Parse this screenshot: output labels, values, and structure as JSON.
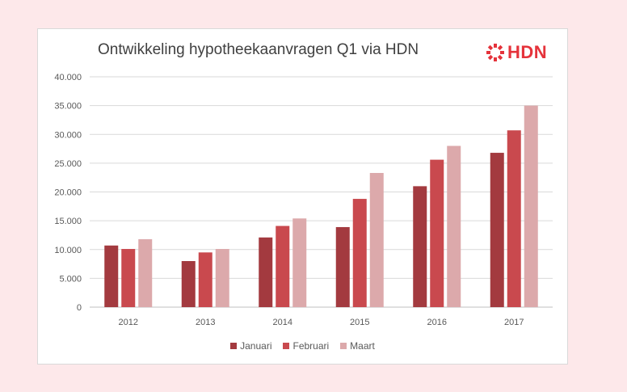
{
  "chart_data": {
    "type": "bar",
    "title": "Ontwikkeling hypotheekaanvragen Q1 via HDN",
    "categories": [
      "2012",
      "2013",
      "2014",
      "2015",
      "2016",
      "2017"
    ],
    "series": [
      {
        "name": "Januari",
        "color": "#a33a3f",
        "values": [
          10700,
          8000,
          12100,
          13900,
          21000,
          26800
        ]
      },
      {
        "name": "Februari",
        "color": "#c9494e",
        "values": [
          10100,
          9500,
          14100,
          18800,
          25600,
          30700
        ]
      },
      {
        "name": "Maart",
        "color": "#dca9ab",
        "values": [
          11800,
          10100,
          15400,
          23300,
          28000,
          35000
        ]
      }
    ],
    "yticks": [
      "0",
      "5.000",
      "10.000",
      "15.000",
      "20.000",
      "25.000",
      "30.000",
      "35.000",
      "40.000"
    ],
    "ylim": [
      0,
      40000
    ],
    "grid": true,
    "legend_position": "bottom"
  },
  "logo": {
    "text": "HDN",
    "color": "#e5333b",
    "icon": "hdn-snowflake-icon"
  },
  "background_color": "#fde8ea"
}
